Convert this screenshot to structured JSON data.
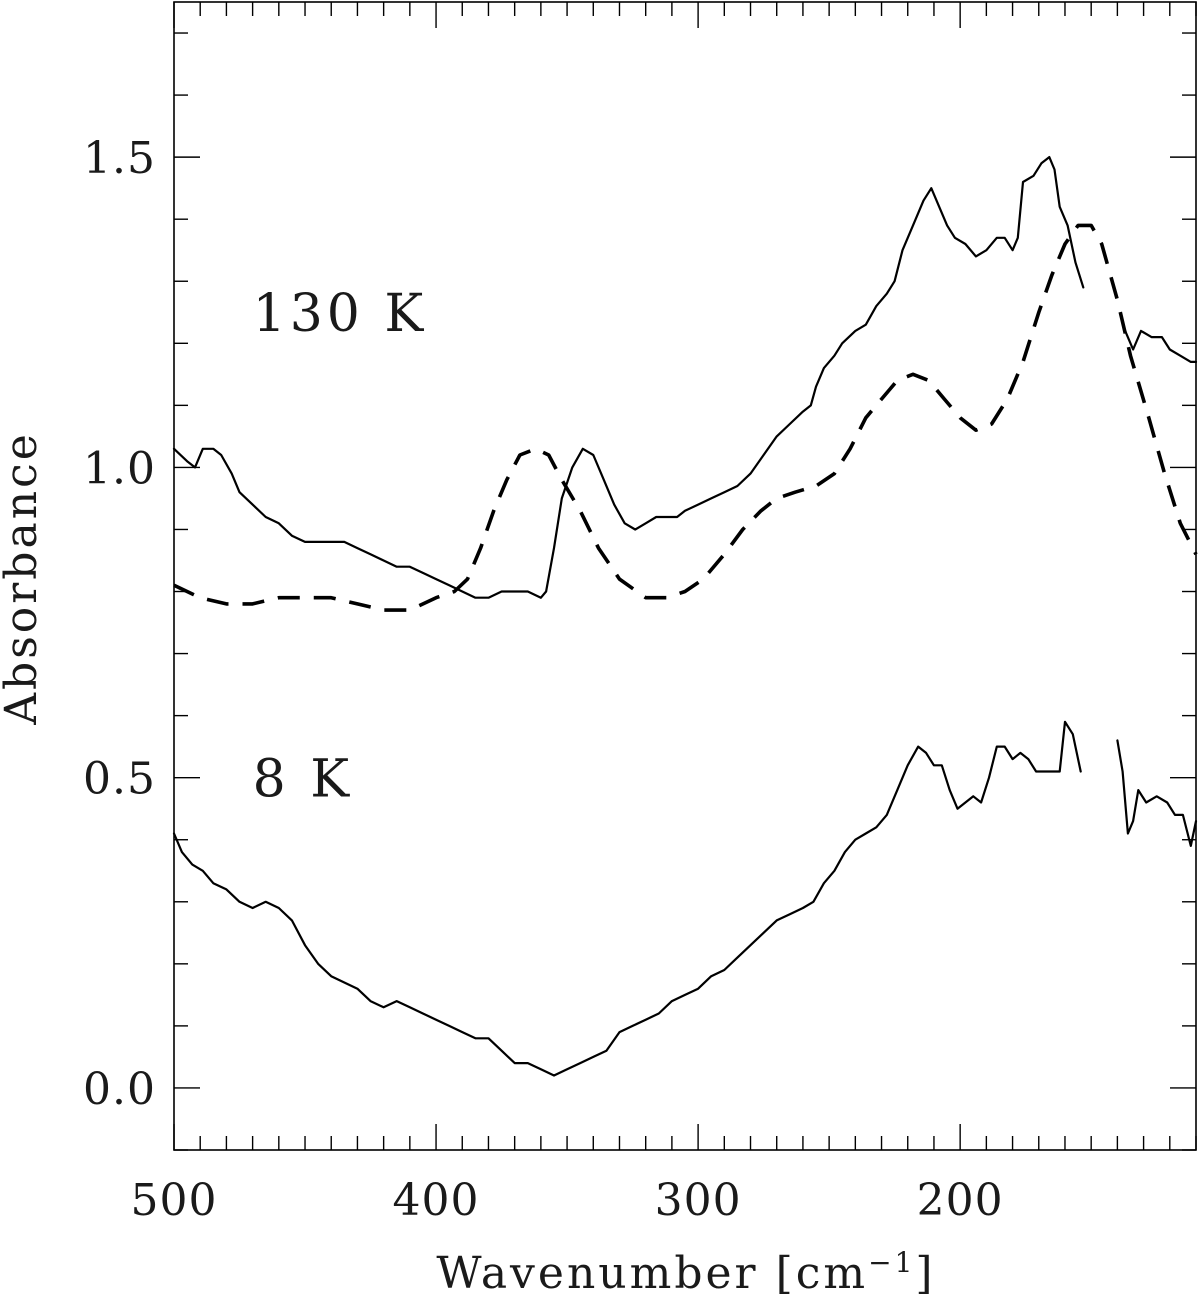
{
  "chart_data": {
    "type": "line",
    "title": "",
    "xlabel": "Wavenumber [cm",
    "xlabel_superscript": "−1",
    "xlabel_suffix": "]",
    "ylabel": "Absorbance",
    "xlim": [
      500,
      110
    ],
    "ylim": [
      -0.1,
      1.75
    ],
    "x_reversed": true,
    "grid": false,
    "x_ticks": [
      500,
      400,
      300,
      200
    ],
    "x_tick_labels": [
      "500",
      "400",
      "300",
      "200"
    ],
    "x_minor_step": 10,
    "y_ticks": [
      0.0,
      0.5,
      1.0,
      1.5
    ],
    "y_tick_labels": [
      "0.0",
      "0.5",
      "1.0",
      "1.5"
    ],
    "y_minor_step": 0.1,
    "annotations": [
      {
        "text": "130 K",
        "x": 470,
        "y": 1.22
      },
      {
        "text": "8 K",
        "x": 470,
        "y": 0.47
      }
    ],
    "series": [
      {
        "style": "solid",
        "segments": [
          [
            [
              500,
              1.03
            ],
            [
              495,
              1.01
            ],
            [
              492,
              1.0
            ],
            [
              489,
              1.03
            ],
            [
              485,
              1.03
            ],
            [
              482,
              1.02
            ],
            [
              478,
              0.99
            ],
            [
              475,
              0.96
            ],
            [
              470,
              0.94
            ],
            [
              465,
              0.92
            ],
            [
              460,
              0.91
            ],
            [
              455,
              0.89
            ],
            [
              450,
              0.88
            ],
            [
              445,
              0.88
            ],
            [
              440,
              0.88
            ],
            [
              435,
              0.88
            ],
            [
              430,
              0.87
            ],
            [
              425,
              0.86
            ],
            [
              420,
              0.85
            ],
            [
              415,
              0.84
            ],
            [
              410,
              0.84
            ],
            [
              405,
              0.83
            ],
            [
              400,
              0.82
            ],
            [
              395,
              0.81
            ],
            [
              390,
              0.8
            ],
            [
              385,
              0.79
            ],
            [
              380,
              0.79
            ],
            [
              375,
              0.8
            ],
            [
              370,
              0.8
            ],
            [
              365,
              0.8
            ],
            [
              360,
              0.79
            ],
            [
              358,
              0.8
            ],
            [
              355,
              0.87
            ],
            [
              352,
              0.95
            ],
            [
              348,
              1.0
            ],
            [
              344,
              1.03
            ],
            [
              340,
              1.02
            ],
            [
              336,
              0.98
            ],
            [
              332,
              0.94
            ],
            [
              328,
              0.91
            ],
            [
              324,
              0.9
            ],
            [
              320,
              0.91
            ],
            [
              316,
              0.92
            ],
            [
              312,
              0.92
            ],
            [
              308,
              0.92
            ],
            [
              305,
              0.93
            ],
            [
              300,
              0.94
            ],
            [
              295,
              0.95
            ],
            [
              290,
              0.96
            ],
            [
              285,
              0.97
            ],
            [
              280,
              0.99
            ],
            [
              275,
              1.02
            ],
            [
              270,
              1.05
            ],
            [
              265,
              1.07
            ],
            [
              260,
              1.09
            ],
            [
              257,
              1.1
            ],
            [
              255,
              1.13
            ],
            [
              252,
              1.16
            ],
            [
              248,
              1.18
            ],
            [
              245,
              1.2
            ],
            [
              240,
              1.22
            ],
            [
              236,
              1.23
            ],
            [
              232,
              1.26
            ],
            [
              228,
              1.28
            ],
            [
              225,
              1.3
            ],
            [
              222,
              1.35
            ],
            [
              218,
              1.39
            ],
            [
              214,
              1.43
            ],
            [
              211,
              1.45
            ],
            [
              208,
              1.42
            ],
            [
              205,
              1.39
            ],
            [
              202,
              1.37
            ],
            [
              198,
              1.36
            ],
            [
              194,
              1.34
            ],
            [
              190,
              1.35
            ],
            [
              186,
              1.37
            ],
            [
              183,
              1.37
            ],
            [
              180,
              1.35
            ],
            [
              178,
              1.37
            ],
            [
              176,
              1.46
            ],
            [
              172,
              1.47
            ],
            [
              169,
              1.49
            ],
            [
              166,
              1.5
            ],
            [
              164,
              1.48
            ],
            [
              162,
              1.42
            ],
            [
              159,
              1.39
            ],
            [
              156,
              1.33
            ],
            [
              153,
              1.29
            ]
          ],
          [
            [
              137,
              1.22
            ],
            [
              134,
              1.19
            ],
            [
              131,
              1.22
            ],
            [
              127,
              1.21
            ],
            [
              123,
              1.21
            ],
            [
              120,
              1.19
            ],
            [
              116,
              1.18
            ],
            [
              112,
              1.17
            ],
            [
              110,
              1.17
            ]
          ]
        ]
      },
      {
        "style": "dashed",
        "segments": [
          [
            [
              500,
              0.81
            ],
            [
              495,
              0.8
            ],
            [
              490,
              0.79
            ],
            [
              480,
              0.78
            ],
            [
              470,
              0.78
            ],
            [
              460,
              0.79
            ],
            [
              450,
              0.79
            ],
            [
              440,
              0.79
            ],
            [
              430,
              0.78
            ],
            [
              420,
              0.77
            ],
            [
              410,
              0.77
            ],
            [
              400,
              0.79
            ],
            [
              393,
              0.8
            ],
            [
              388,
              0.82
            ],
            [
              383,
              0.87
            ],
            [
              378,
              0.93
            ],
            [
              373,
              0.98
            ],
            [
              368,
              1.02
            ],
            [
              362,
              1.03
            ],
            [
              357,
              1.02
            ],
            [
              352,
              0.98
            ],
            [
              345,
              0.93
            ],
            [
              338,
              0.87
            ],
            [
              330,
              0.82
            ],
            [
              320,
              0.79
            ],
            [
              312,
              0.79
            ],
            [
              305,
              0.8
            ],
            [
              298,
              0.82
            ],
            [
              290,
              0.86
            ],
            [
              283,
              0.9
            ],
            [
              276,
              0.93
            ],
            [
              270,
              0.95
            ],
            [
              263,
              0.96
            ],
            [
              255,
              0.97
            ],
            [
              248,
              0.99
            ],
            [
              242,
              1.03
            ],
            [
              236,
              1.08
            ],
            [
              230,
              1.11
            ],
            [
              224,
              1.14
            ],
            [
              218,
              1.15
            ],
            [
              212,
              1.14
            ],
            [
              206,
              1.11
            ],
            [
              200,
              1.08
            ],
            [
              194,
              1.06
            ],
            [
              188,
              1.07
            ],
            [
              182,
              1.11
            ],
            [
              176,
              1.17
            ],
            [
              170,
              1.25
            ],
            [
              165,
              1.31
            ],
            [
              160,
              1.36
            ],
            [
              155,
              1.39
            ],
            [
              150,
              1.39
            ],
            [
              146,
              1.36
            ],
            [
              140,
              1.27
            ],
            [
              135,
              1.18
            ],
            [
              128,
              1.08
            ],
            [
              122,
              0.99
            ],
            [
              116,
              0.91
            ],
            [
              110,
              0.86
            ]
          ]
        ]
      },
      {
        "style": "solid",
        "segments": [
          [
            [
              500,
              0.41
            ],
            [
              497,
              0.38
            ],
            [
              493,
              0.36
            ],
            [
              489,
              0.35
            ],
            [
              485,
              0.33
            ],
            [
              480,
              0.32
            ],
            [
              475,
              0.3
            ],
            [
              470,
              0.29
            ],
            [
              465,
              0.3
            ],
            [
              460,
              0.29
            ],
            [
              455,
              0.27
            ],
            [
              450,
              0.23
            ],
            [
              445,
              0.2
            ],
            [
              440,
              0.18
            ],
            [
              435,
              0.17
            ],
            [
              430,
              0.16
            ],
            [
              425,
              0.14
            ],
            [
              420,
              0.13
            ],
            [
              415,
              0.14
            ],
            [
              410,
              0.13
            ],
            [
              405,
              0.12
            ],
            [
              400,
              0.11
            ],
            [
              395,
              0.1
            ],
            [
              390,
              0.09
            ],
            [
              385,
              0.08
            ],
            [
              380,
              0.08
            ],
            [
              375,
              0.06
            ],
            [
              370,
              0.04
            ],
            [
              365,
              0.04
            ],
            [
              360,
              0.03
            ],
            [
              355,
              0.02
            ],
            [
              350,
              0.03
            ],
            [
              345,
              0.04
            ],
            [
              340,
              0.05
            ],
            [
              335,
              0.06
            ],
            [
              330,
              0.09
            ],
            [
              325,
              0.1
            ],
            [
              320,
              0.11
            ],
            [
              315,
              0.12
            ],
            [
              310,
              0.14
            ],
            [
              305,
              0.15
            ],
            [
              300,
              0.16
            ],
            [
              295,
              0.18
            ],
            [
              290,
              0.19
            ],
            [
              285,
              0.21
            ],
            [
              280,
              0.23
            ],
            [
              275,
              0.25
            ],
            [
              270,
              0.27
            ],
            [
              265,
              0.28
            ],
            [
              260,
              0.29
            ],
            [
              256,
              0.3
            ],
            [
              252,
              0.33
            ],
            [
              248,
              0.35
            ],
            [
              244,
              0.38
            ],
            [
              240,
              0.4
            ],
            [
              236,
              0.41
            ],
            [
              232,
              0.42
            ],
            [
              228,
              0.44
            ],
            [
              224,
              0.48
            ],
            [
              220,
              0.52
            ],
            [
              216,
              0.55
            ],
            [
              213,
              0.54
            ],
            [
              210,
              0.52
            ],
            [
              207,
              0.52
            ],
            [
              204,
              0.48
            ],
            [
              201,
              0.45
            ],
            [
              198,
              0.46
            ],
            [
              195,
              0.47
            ],
            [
              192,
              0.46
            ],
            [
              189,
              0.5
            ],
            [
              186,
              0.55
            ],
            [
              183,
              0.55
            ],
            [
              180,
              0.53
            ],
            [
              177,
              0.54
            ],
            [
              174,
              0.53
            ],
            [
              171,
              0.51
            ],
            [
              168,
              0.51
            ],
            [
              165,
              0.51
            ],
            [
              162,
              0.51
            ],
            [
              160,
              0.59
            ],
            [
              157,
              0.57
            ],
            [
              154,
              0.51
            ]
          ],
          [
            [
              140,
              0.56
            ],
            [
              138,
              0.51
            ],
            [
              136,
              0.41
            ],
            [
              134,
              0.43
            ],
            [
              132,
              0.48
            ],
            [
              129,
              0.46
            ],
            [
              125,
              0.47
            ],
            [
              121,
              0.46
            ],
            [
              118,
              0.44
            ],
            [
              115,
              0.44
            ],
            [
              112,
              0.39
            ],
            [
              110,
              0.43
            ]
          ]
        ]
      }
    ]
  }
}
